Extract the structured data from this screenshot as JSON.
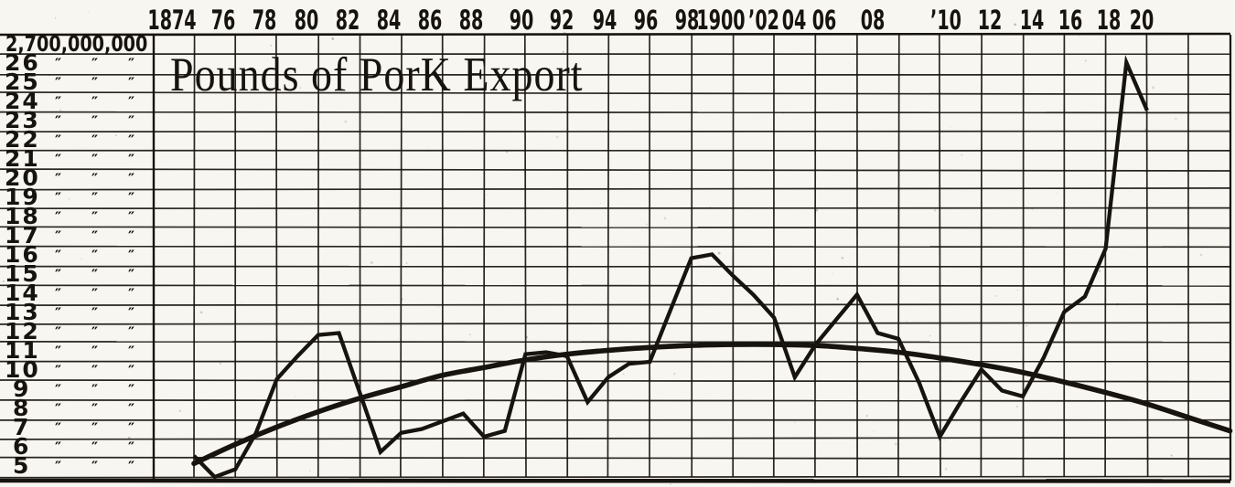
{
  "figure": {
    "kind": "scanned hand-drawn line chart",
    "paper_color": "#f8f6f0",
    "ink_color": "#17130e"
  },
  "chart_data": {
    "type": "line",
    "title": "Pounds of PorK Export",
    "grid": true,
    "value_unit": "hundreds of millions of pounds (axis shows 2,700,000,000 at top)",
    "ylim": [
      5,
      27
    ],
    "x_axis": {
      "position": "top",
      "range_years": [
        1872,
        1924
      ],
      "ticks": [
        {
          "label": "1874",
          "x": 188
        },
        {
          "label": "76",
          "x": 244
        },
        {
          "label": "78",
          "x": 289
        },
        {
          "label": "80",
          "x": 335
        },
        {
          "label": "82",
          "x": 380
        },
        {
          "label": "84",
          "x": 425
        },
        {
          "label": "86",
          "x": 470
        },
        {
          "label": "88",
          "x": 515
        },
        {
          "label": "90",
          "x": 570
        },
        {
          "label": "92",
          "x": 614
        },
        {
          "label": "94",
          "x": 661
        },
        {
          "label": "96",
          "x": 706
        },
        {
          "label": "98",
          "x": 751
        },
        {
          "label": "1900",
          "x": 788
        },
        {
          "label": "’02",
          "x": 835
        },
        {
          "label": "04",
          "x": 868
        },
        {
          "label": "06",
          "x": 901
        },
        {
          "label": "08",
          "x": 954
        },
        {
          "label": "’10",
          "x": 1034
        },
        {
          "label": "12",
          "x": 1082
        },
        {
          "label": "14",
          "x": 1128
        },
        {
          "label": "16",
          "x": 1170
        },
        {
          "label": "18",
          "x": 1212
        },
        {
          "label": "20",
          "x": 1248
        }
      ]
    },
    "y_axis": {
      "top_label": "2,700,000,000",
      "row_numbers": [
        "26",
        "25",
        "24",
        "23",
        "22",
        "21",
        "20",
        "19",
        "18",
        "17",
        "16",
        "15",
        "14",
        "13",
        "12",
        "11",
        "10",
        "9",
        "8",
        "7",
        "6",
        "5"
      ],
      "ditto": "″",
      "values_top_to_bottom": [
        27,
        26,
        25,
        24,
        23,
        22,
        21,
        20,
        19,
        18,
        17,
        16,
        15,
        14,
        13,
        12,
        11,
        10,
        9,
        8,
        7,
        6,
        5
      ]
    },
    "series": [
      {
        "name": "pork-exports-actual",
        "style": "jagged",
        "x": [
          1874,
          1875,
          1876,
          1877,
          1878,
          1879,
          1880,
          1881,
          1882,
          1883,
          1884,
          1885,
          1886,
          1887,
          1888,
          1889,
          1890,
          1891,
          1892,
          1893,
          1894,
          1895,
          1896,
          1897,
          1898,
          1899,
          1900,
          1901,
          1902,
          1903,
          1904,
          1905,
          1906,
          1907,
          1908,
          1909,
          1910,
          1911,
          1912,
          1913,
          1914,
          1915,
          1916,
          1917,
          1918,
          1919,
          1920
        ],
        "values": [
          6.1,
          5.0,
          5.4,
          7.3,
          10.1,
          11.3,
          12.4,
          12.5,
          9.4,
          6.3,
          7.3,
          7.5,
          7.9,
          8.3,
          7.1,
          7.4,
          11.4,
          11.5,
          11.3,
          8.9,
          10.2,
          10.9,
          11.0,
          13.7,
          16.4,
          16.6,
          15.5,
          14.5,
          13.3,
          10.2,
          11.9,
          13.2,
          14.5,
          12.5,
          12.2,
          9.9,
          7.1,
          8.9,
          10.6,
          9.5,
          9.2,
          11.2,
          13.6,
          14.4,
          16.9,
          26.6,
          24.1
        ]
      },
      {
        "name": "smoothed-trend-curve",
        "style": "smooth",
        "x": [
          1874,
          1876,
          1878,
          1880,
          1882,
          1884,
          1886,
          1888,
          1890,
          1892,
          1894,
          1896,
          1898,
          1900,
          1902,
          1904,
          1906,
          1908,
          1910,
          1912,
          1914,
          1916,
          1918,
          1920,
          1922,
          1924
        ],
        "values": [
          5.7,
          6.7,
          7.6,
          8.4,
          9.1,
          9.7,
          10.3,
          10.7,
          11.1,
          11.4,
          11.6,
          11.75,
          11.85,
          11.9,
          11.9,
          11.85,
          11.7,
          11.5,
          11.2,
          10.85,
          10.45,
          9.95,
          9.4,
          8.8,
          8.1,
          7.4
        ]
      }
    ],
    "legend": "none"
  }
}
